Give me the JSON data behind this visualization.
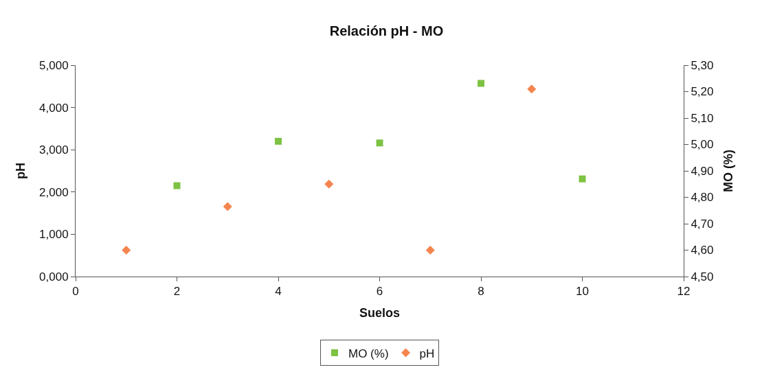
{
  "chart_data": {
    "type": "scatter",
    "title": "Relación pH - MO",
    "xlabel": "Suelos",
    "ylabel": "pH",
    "y2label": "MO (%)",
    "series": [
      {
        "name": "MO (%)",
        "color": "#7dc242",
        "marker": "square",
        "x": [
          2,
          4,
          6,
          8,
          10
        ],
        "values": [
          2.15,
          3.2,
          3.16,
          4.57,
          2.31
        ]
      },
      {
        "name": "pH",
        "color": "#f5854f",
        "marker": "diamond",
        "axis": "y2",
        "x": [
          1,
          3,
          5,
          7,
          9
        ],
        "values": [
          4.6,
          4.765,
          4.85,
          4.6,
          5.21
        ]
      }
    ],
    "xlim": [
      0,
      12
    ],
    "xticks": [
      0,
      2,
      4,
      6,
      8,
      10,
      12
    ],
    "ylim": [
      0,
      5
    ],
    "yticks": [
      {
        "value": 0,
        "label": "0,000"
      },
      {
        "value": 1,
        "label": "1,000"
      },
      {
        "value": 2,
        "label": "2,000"
      },
      {
        "value": 3,
        "label": "3,000"
      },
      {
        "value": 4,
        "label": "4,000"
      },
      {
        "value": 5,
        "label": "5,000"
      }
    ],
    "y2lim": [
      4.5,
      5.3
    ],
    "y2ticks": [
      {
        "value": 4.5,
        "label": "4,50"
      },
      {
        "value": 4.6,
        "label": "4,60"
      },
      {
        "value": 4.7,
        "label": "4,70"
      },
      {
        "value": 4.8,
        "label": "4,80"
      },
      {
        "value": 4.9,
        "label": "4,90"
      },
      {
        "value": 5.0,
        "label": "5,00"
      },
      {
        "value": 5.1,
        "label": "5,10"
      },
      {
        "value": 5.2,
        "label": "5,20"
      },
      {
        "value": 5.3,
        "label": "5,30"
      }
    ],
    "legend": "bottom"
  }
}
